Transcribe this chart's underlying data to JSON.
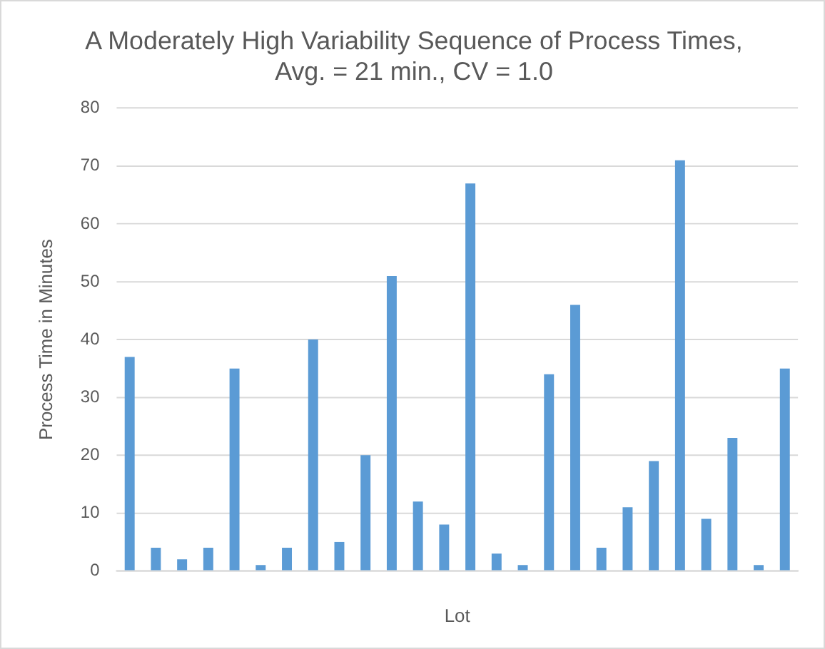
{
  "chart_data": {
    "type": "bar",
    "title": "A Moderately High Variability Sequence of Process Times, Avg. = 21 min., CV = 1.0",
    "xlabel": "Lot",
    "ylabel": "Process Time in Minutes",
    "categories": [
      null,
      null,
      null,
      null,
      null,
      null,
      null,
      null,
      null,
      null,
      null,
      null,
      null,
      null,
      null,
      null,
      null,
      null,
      null,
      null,
      null,
      null,
      null,
      null,
      null,
      null
    ],
    "values": [
      37,
      4,
      2,
      4,
      35,
      1,
      4,
      40,
      5,
      20,
      51,
      12,
      8,
      67,
      3,
      1,
      34,
      46,
      4,
      11,
      19,
      71,
      9,
      23,
      1,
      35
    ],
    "color": "#5b9bd5",
    "ylim": [
      0,
      80
    ],
    "yticks": [
      0,
      10,
      20,
      30,
      40,
      50,
      60,
      70,
      80
    ],
    "grid": "y"
  }
}
